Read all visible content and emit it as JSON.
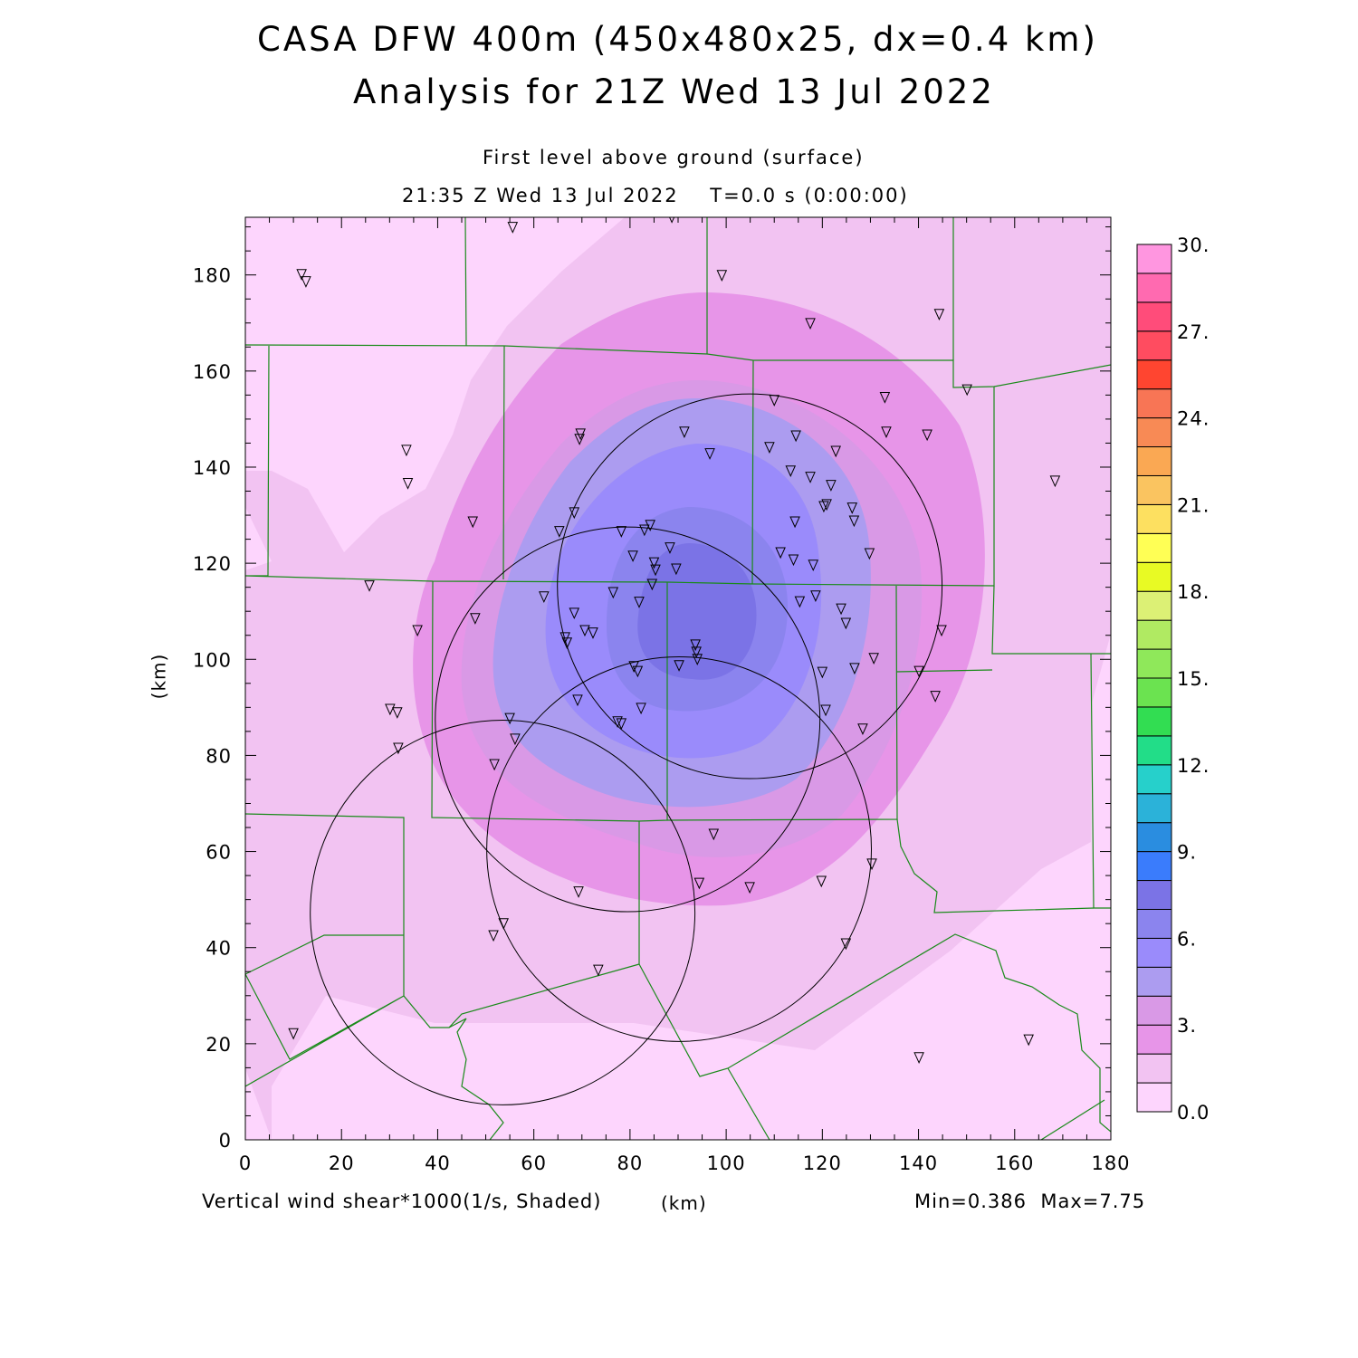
{
  "chart_data": {
    "type": "heatmap",
    "title": "CASA DFW 400m (450x480x25, dx=0.4 km)",
    "subtitle": "Analysis for 21Z Wed 13 Jul 2022",
    "level_label": "First level above ground (surface)",
    "time_label": "21:35 Z Wed 13 Jul 2022    T=0.0 s (0:00:00)",
    "xlabel": "(km)",
    "ylabel": "(km)",
    "field_label": "Vertical wind shear*1000(1/s, Shaded)",
    "stats": "Min=0.386  Max=7.75",
    "xlim": [
      0,
      180
    ],
    "ylim": [
      0,
      192
    ],
    "xticks": [
      "0",
      "20",
      "40",
      "60",
      "80",
      "100",
      "120",
      "140",
      "160",
      "180"
    ],
    "yticks": [
      "0",
      "20",
      "40",
      "60",
      "80",
      "100",
      "120",
      "140",
      "160",
      "180"
    ],
    "colorbar": {
      "min": 0,
      "max": 30,
      "step": 1,
      "labels": [
        "0.0",
        "3.",
        "6.",
        "9.",
        "12.",
        "15.",
        "18.",
        "21.",
        "24.",
        "27.",
        "30."
      ],
      "colors": [
        "#fdd5fd",
        "#f2c3f2",
        "#e795e8",
        "#d999e6",
        "#ac9cf0",
        "#9a8bfb",
        "#8b84ee",
        "#7b73e6",
        "#3a7cfc",
        "#2a8de0",
        "#2bb2d9",
        "#26d0cb",
        "#22dd88",
        "#32dd52",
        "#6be350",
        "#8fe85a",
        "#b0ea62",
        "#dcf075",
        "#e8fa24",
        "#ffff55",
        "#fde060",
        "#fac460",
        "#faa853",
        "#f88a55",
        "#f87555",
        "#ff4530",
        "#ff4c60",
        "#ff4c7a",
        "#ff6ab0",
        "#ff96e0"
      ]
    },
    "radar_rings": [
      {
        "x": 104.9,
        "y": 115.2,
        "r": 40
      },
      {
        "x": 79.5,
        "y": 87.5,
        "r": 40
      },
      {
        "x": 90.2,
        "y": 60.5,
        "r": 40
      },
      {
        "x": 53.5,
        "y": 47.3,
        "r": 40
      }
    ],
    "stations": [
      [
        11.7,
        180
      ],
      [
        12.6,
        178.5
      ],
      [
        55.6,
        189.8
      ],
      [
        88.7,
        191.9
      ],
      [
        99.1,
        179.8
      ],
      [
        117.5,
        169.8
      ],
      [
        144.3,
        171.7
      ],
      [
        150.1,
        156
      ],
      [
        33.5,
        143.4
      ],
      [
        33.8,
        136.5
      ],
      [
        168.4,
        137
      ],
      [
        69.7,
        146.8
      ],
      [
        69.5,
        145.7
      ],
      [
        91.3,
        147.2
      ],
      [
        96.6,
        142.7
      ],
      [
        110,
        153.8
      ],
      [
        133,
        154.4
      ],
      [
        133.3,
        147.2
      ],
      [
        141.8,
        146.6
      ],
      [
        109,
        144
      ],
      [
        114.5,
        146.4
      ],
      [
        122.8,
        143.2
      ],
      [
        113.4,
        139.1
      ],
      [
        117.5,
        137.8
      ],
      [
        121.8,
        136.1
      ],
      [
        120.9,
        132.1
      ],
      [
        120.3,
        131.7
      ],
      [
        126.2,
        131.4
      ],
      [
        126.6,
        128.7
      ],
      [
        114.3,
        128.5
      ],
      [
        47.3,
        128.5
      ],
      [
        68.4,
        130.4
      ],
      [
        65.3,
        126.5
      ],
      [
        78.2,
        126.5
      ],
      [
        83,
        126.8
      ],
      [
        84.2,
        127.8
      ],
      [
        88.3,
        123.1
      ],
      [
        80.6,
        121.4
      ],
      [
        85,
        120
      ],
      [
        85.3,
        118.5
      ],
      [
        89.6,
        118.7
      ],
      [
        111.3,
        122.1
      ],
      [
        114,
        120.6
      ],
      [
        118.1,
        119.5
      ],
      [
        129.8,
        121.9
      ],
      [
        84.6,
        115.5
      ],
      [
        25.8,
        115.2
      ],
      [
        62.1,
        112.9
      ],
      [
        76.5,
        113.8
      ],
      [
        81.9,
        111.8
      ],
      [
        115.3,
        111.9
      ],
      [
        118.6,
        113.1
      ],
      [
        123.9,
        110.4
      ],
      [
        124.9,
        107.4
      ],
      [
        68.4,
        109.5
      ],
      [
        47.8,
        108.4
      ],
      [
        35.8,
        105.9
      ],
      [
        70.6,
        105.9
      ],
      [
        72.3,
        105.4
      ],
      [
        66.5,
        104.4
      ],
      [
        66.9,
        103.3
      ],
      [
        93.6,
        102.9
      ],
      [
        93.8,
        101.4
      ],
      [
        94,
        99.9
      ],
      [
        90.2,
        98.6
      ],
      [
        80.8,
        98.4
      ],
      [
        81.6,
        97.4
      ],
      [
        130.7,
        100.1
      ],
      [
        126.7,
        98
      ],
      [
        120,
        97.2
      ],
      [
        140.1,
        97.4
      ],
      [
        144.8,
        105.9
      ],
      [
        143.5,
        92.2
      ],
      [
        30.1,
        89.5
      ],
      [
        31.6,
        88.8
      ],
      [
        69.1,
        91.4
      ],
      [
        82.3,
        89.7
      ],
      [
        120.7,
        89.3
      ],
      [
        77.4,
        86.9
      ],
      [
        78.2,
        86.5
      ],
      [
        55,
        87.6
      ],
      [
        56.1,
        83.3
      ],
      [
        31.8,
        81.4
      ],
      [
        51.8,
        78
      ],
      [
        128.4,
        85.4
      ],
      [
        97.4,
        63.5
      ],
      [
        130.3,
        57.3
      ],
      [
        94.4,
        53.3
      ],
      [
        104.9,
        52.4
      ],
      [
        119.8,
        53.7
      ],
      [
        69.3,
        51.5
      ],
      [
        53.7,
        44.9
      ],
      [
        51.6,
        42.4
      ],
      [
        124.9,
        40.7
      ],
      [
        73.4,
        35.2
      ],
      [
        10,
        22
      ],
      [
        162.9,
        20.7
      ],
      [
        140.1,
        17
      ]
    ]
  }
}
